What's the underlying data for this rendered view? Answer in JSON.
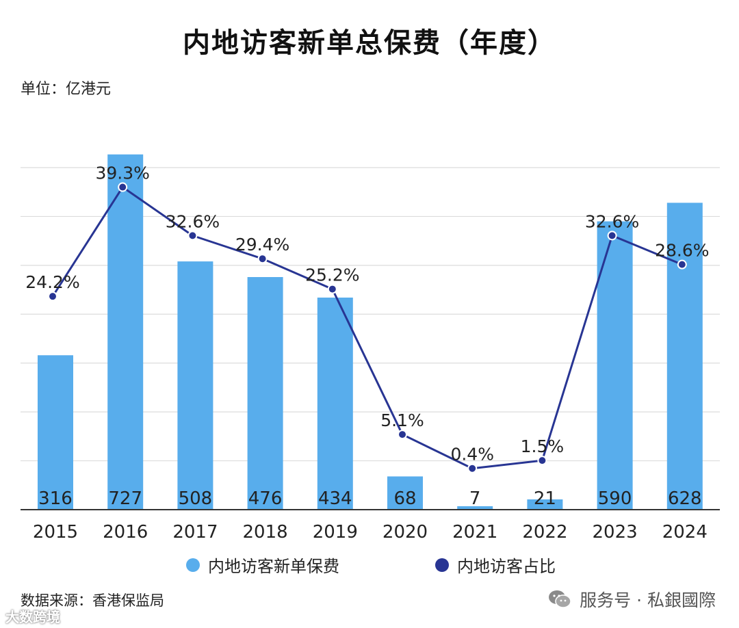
{
  "title": "内地访客新单总保费（年度）",
  "unit": "单位：亿港元",
  "source": "数据来源：香港保监局",
  "brand": "服务号 · 私銀國際",
  "watermark": "大数跨境",
  "legend": {
    "bar": "内地访客新单保费",
    "line": "内地访客占比"
  },
  "colors": {
    "bar": "#58ADEC",
    "line": "#283593",
    "grid": "#DCDCDC"
  },
  "chart_data": {
    "type": "bar",
    "title": "内地访客新单总保费（年度）",
    "categories": [
      "2015",
      "2016",
      "2017",
      "2018",
      "2019",
      "2020",
      "2021",
      "2022",
      "2023",
      "2024"
    ],
    "series": [
      {
        "name": "内地访客新单保费",
        "type": "bar",
        "values": [
          316,
          727,
          508,
          476,
          434,
          68,
          7,
          21,
          590,
          628
        ],
        "labels": [
          "316",
          "727",
          "508",
          "476",
          "434",
          "68",
          "7",
          "21",
          "590",
          "628"
        ]
      },
      {
        "name": "内地访客占比",
        "type": "line",
        "values": [
          24.2,
          39.3,
          32.6,
          29.4,
          25.2,
          5.1,
          0.4,
          1.5,
          32.6,
          28.6
        ],
        "labels": [
          "24.2%",
          "39.3%",
          "32.6%",
          "29.4%",
          "25.2%",
          "5.1%",
          "0.4%",
          "1.5%",
          "32.6%",
          "28.6%"
        ]
      }
    ],
    "ylabel": "单位：亿港元",
    "ylim": [
      0,
      700
    ],
    "y2lim": [
      -5.3,
      42
    ],
    "grid": true,
    "legend_position": "bottom"
  }
}
